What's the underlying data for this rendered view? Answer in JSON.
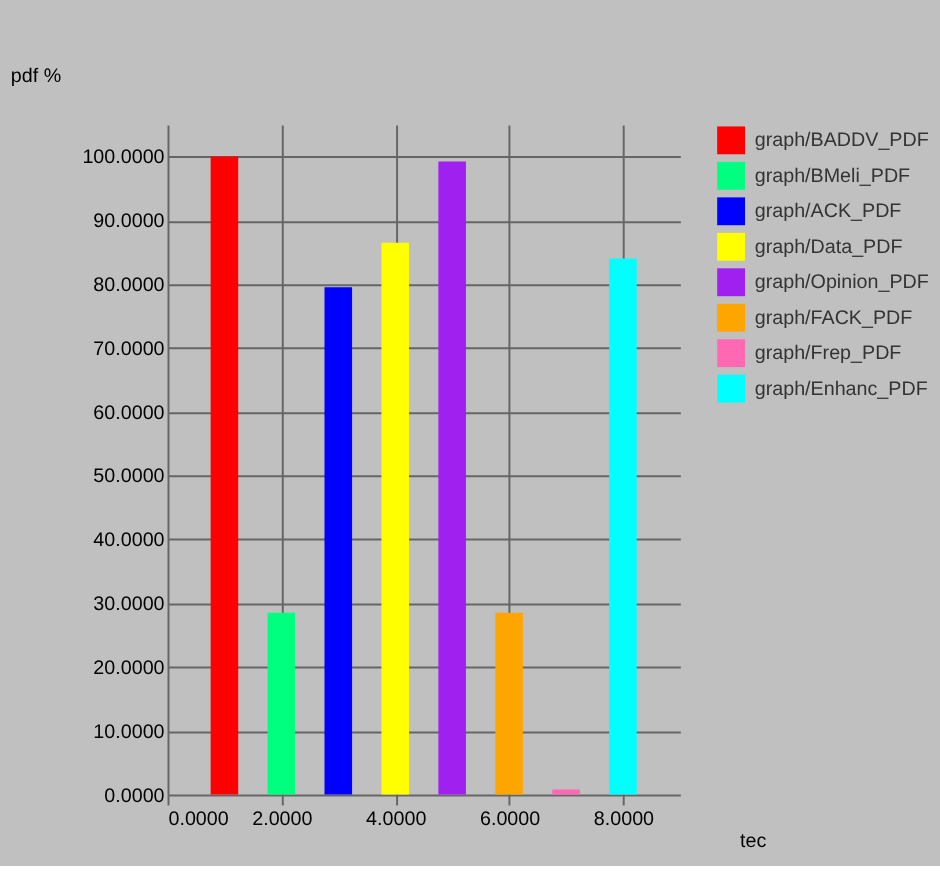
{
  "chart_data": {
    "type": "bar",
    "ylabel": "pdf %",
    "xlabel": "tec",
    "xlim": [
      0,
      9
    ],
    "ylim": [
      0,
      105
    ],
    "xticks": [
      {
        "value": 0,
        "label": "0.0000"
      },
      {
        "value": 2,
        "label": "2.0000"
      },
      {
        "value": 4,
        "label": "4.0000"
      },
      {
        "value": 6,
        "label": "6.0000"
      },
      {
        "value": 8,
        "label": "8.0000"
      }
    ],
    "yticks": [
      {
        "value": 0,
        "label": "0.0000"
      },
      {
        "value": 10,
        "label": "10.0000"
      },
      {
        "value": 20,
        "label": "20.0000"
      },
      {
        "value": 30,
        "label": "30.0000"
      },
      {
        "value": 40,
        "label": "40.0000"
      },
      {
        "value": 50,
        "label": "50.0000"
      },
      {
        "value": 60,
        "label": "60.0000"
      },
      {
        "value": 70,
        "label": "70.0000"
      },
      {
        "value": 80,
        "label": "80.0000"
      },
      {
        "value": 90,
        "label": "90.0000"
      },
      {
        "value": 100,
        "label": "100.0000"
      }
    ],
    "grid": true,
    "legend": "top right",
    "series": [
      {
        "name": "graph/BADDV_PDF",
        "color": "#ff0000",
        "x": [
          1
        ],
        "values": [
          100
        ]
      },
      {
        "name": "graph/BMeli_PDF",
        "color": "#00ff7f",
        "x": [
          2
        ],
        "values": [
          28.5
        ]
      },
      {
        "name": "graph/ACK_PDF",
        "color": "#0000ff",
        "x": [
          3
        ],
        "values": [
          79.5
        ]
      },
      {
        "name": "graph/Data_PDF",
        "color": "#ffff00",
        "x": [
          4
        ],
        "values": [
          86.5
        ]
      },
      {
        "name": "graph/Opinion_PDF",
        "color": "#a020f0",
        "x": [
          5
        ],
        "values": [
          99.2
        ]
      },
      {
        "name": "graph/FACK_PDF",
        "color": "#ffa500",
        "x": [
          6
        ],
        "values": [
          28.5
        ]
      },
      {
        "name": "graph/Frep_PDF",
        "color": "#ff69b4",
        "x": [
          7
        ],
        "values": [
          0.8
        ]
      },
      {
        "name": "graph/Enhanc_PDF",
        "color": "#00ffff",
        "x": [
          8
        ],
        "values": [
          84
        ]
      }
    ]
  }
}
